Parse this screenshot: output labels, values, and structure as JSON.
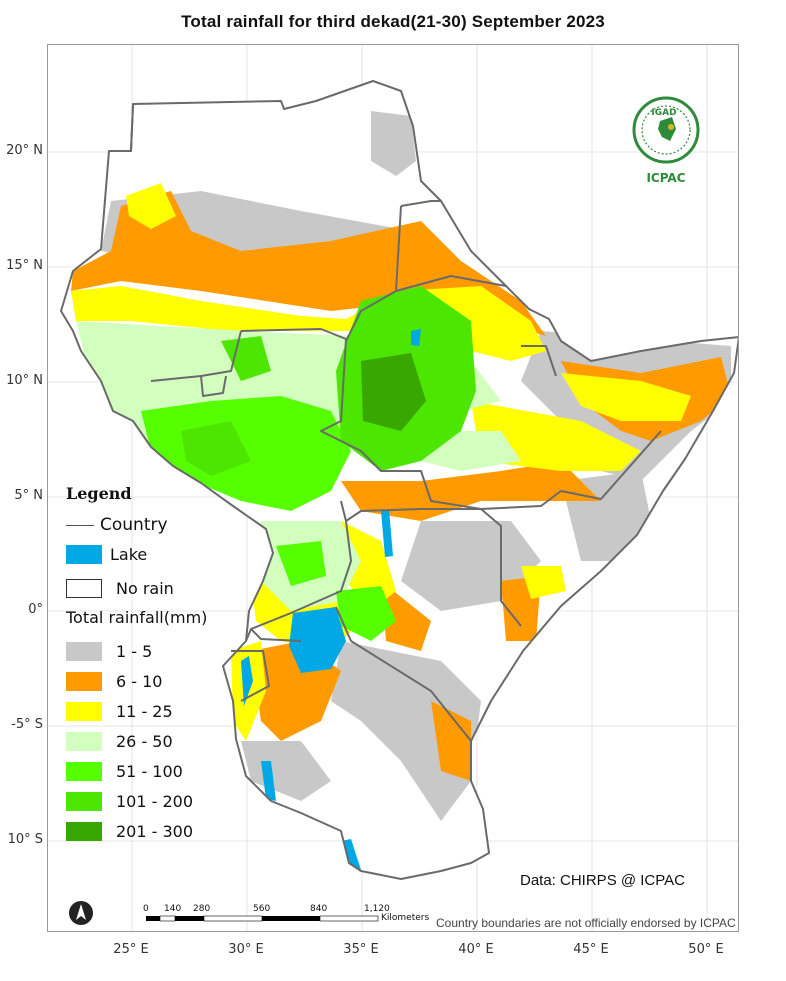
{
  "title": "Total rainfall  for  third dekad(21-30)  September 2023",
  "lat_labels": [
    "20° N",
    "15° N",
    "10° N",
    "5° N",
    "0°",
    "-5° S",
    "10° S"
  ],
  "lon_labels": [
    "25° E",
    "30° E",
    "35° E",
    "40° E",
    "45° E",
    "50° E"
  ],
  "legend": {
    "title": "Legend",
    "country": "Country",
    "lake": "Lake",
    "no_rain": "No rain",
    "total_title": "Total rainfall(mm)",
    "classes": [
      {
        "label": "1 - 5",
        "color": "#c8c8c8"
      },
      {
        "label": "6 - 10",
        "color": "#ff9a00"
      },
      {
        "label": "11 - 25",
        "color": "#ffff00"
      },
      {
        "label": "26 - 50",
        "color": "#d2ffbe"
      },
      {
        "label": "51 - 100",
        "color": "#55ff00"
      },
      {
        "label": "101 - 200",
        "color": "#4ce600"
      },
      {
        "label": "201 - 300",
        "color": "#38a800"
      }
    ],
    "lake_color": "#00a9e6"
  },
  "logo": {
    "top_text": "IGAD",
    "bottom_text": "ICPAC"
  },
  "data_credit": "Data: CHIRPS @ ICPAC",
  "disclaimer": "Country boundaries are not officially endorsed by ICPAC",
  "scale": {
    "ticks": [
      "0",
      "140",
      "280",
      "560",
      "840",
      "1,120"
    ],
    "unit": "Kilometers"
  }
}
